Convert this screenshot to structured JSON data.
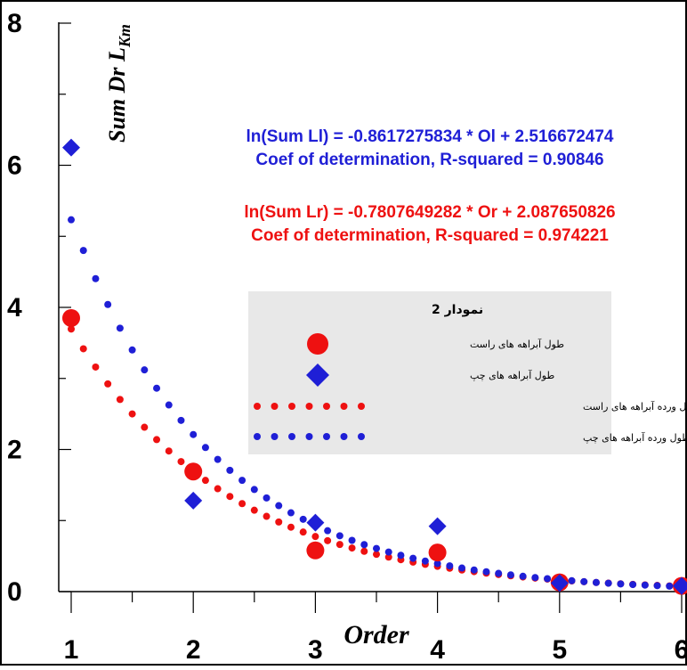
{
  "chart_data": {
    "type": "scatter",
    "xlabel": "Order",
    "ylabel": {
      "main": "Sum Dr L",
      "sub": "Km"
    },
    "xlim": [
      1,
      6
    ],
    "ylim": [
      0,
      8
    ],
    "x_ticks": [
      "1",
      "2",
      "3",
      "4",
      "5",
      "6"
    ],
    "y_ticks": [
      "0",
      "2",
      "4",
      "6",
      "8"
    ],
    "series": [
      {
        "name": "طول آبراهه های راست",
        "marker": "circle",
        "color": "#ee1111",
        "points": [
          [
            1,
            3.85
          ],
          [
            2,
            1.69
          ],
          [
            3,
            0.58
          ],
          [
            4,
            0.55
          ],
          [
            5,
            0.13
          ],
          [
            6,
            0.08
          ]
        ]
      },
      {
        "name": "طول آبراهه های چپ",
        "marker": "diamond",
        "color": "#1f1fd6",
        "points": [
          [
            1,
            6.25
          ],
          [
            2,
            1.28
          ],
          [
            3,
            0.97
          ],
          [
            4,
            0.92
          ],
          [
            5,
            0.12
          ],
          [
            6,
            0.08
          ]
        ]
      },
      {
        "name": "خط برازش طول ورده آبراهه های راست",
        "marker": "dotted-line",
        "color": "#ee1111",
        "fit": {
          "slope": -0.7807649282,
          "intercept": 2.087650826
        }
      },
      {
        "name": "خط برازش طول ورده آبراهه های چپ",
        "marker": "dotted-line",
        "color": "#1f1fd6",
        "fit": {
          "slope": -0.8617275834,
          "intercept": 2.516672474
        }
      }
    ],
    "annotations": {
      "eq_left_line1": "ln(Sum Ll) = -0.8617275834 * Ol + 2.516672474",
      "eq_left_line2": "Coef of determination, R-squared = 0.90846",
      "eq_right_line1": "ln(Sum Lr) = -0.7807649282 * Or + 2.087650826",
      "eq_right_line2": "Coef of determination, R-squared = 0.974221"
    },
    "legend": {
      "title": "نمودار 2",
      "position": "center-right",
      "items": [
        "طول آبراهه های راست",
        "طول آبراهه های چپ",
        "خط برازش طول ورده آبراهه های راست",
        "خط برازش طول ورده آبراهه های چپ"
      ]
    },
    "colors": {
      "left": "#1f1fd6",
      "right": "#ee1111",
      "legend_bg": "#e8e8e8"
    }
  }
}
